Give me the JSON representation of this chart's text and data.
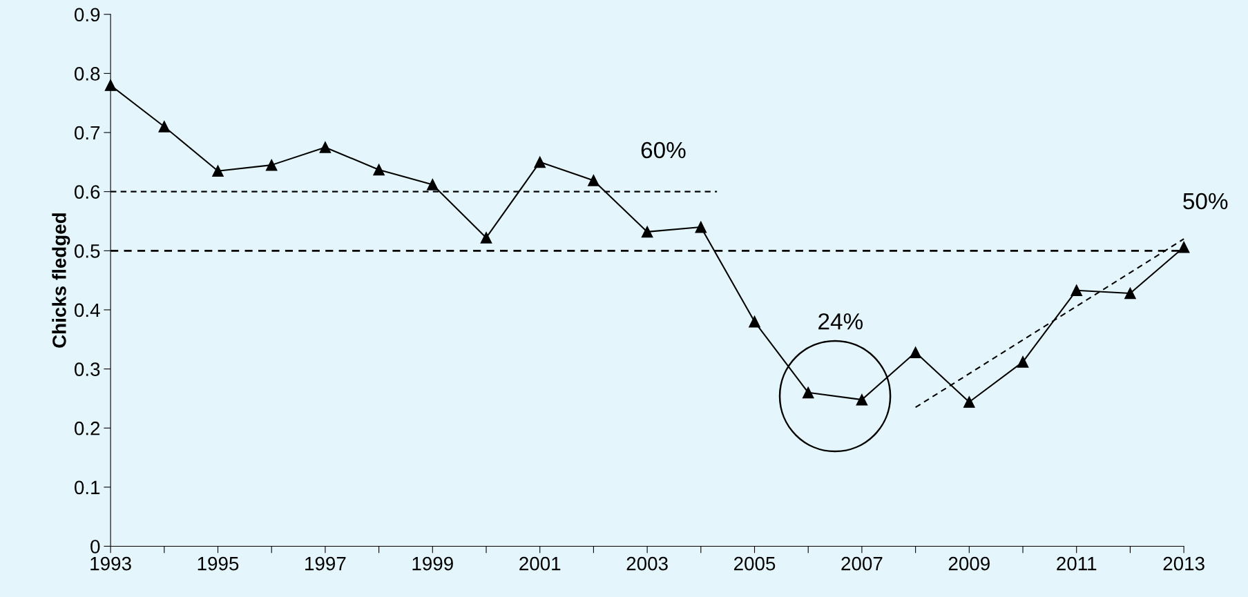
{
  "chart_data": {
    "type": "line",
    "ylabel": "Chicks fledged",
    "x": [
      1993,
      1994,
      1995,
      1996,
      1997,
      1998,
      1999,
      2000,
      2001,
      2002,
      2003,
      2004,
      2005,
      2006,
      2007,
      2008,
      2009,
      2010,
      2011,
      2012,
      2013
    ],
    "series": [
      {
        "color": "#000000",
        "values": [
          0.78,
          0.71,
          0.635,
          0.645,
          0.675,
          0.637,
          0.612,
          0.522,
          0.65,
          0.619,
          0.532,
          0.54,
          0.38,
          0.26,
          0.248,
          0.328,
          0.244,
          0.312,
          0.433,
          0.428,
          0.506
        ],
        "marker": "triangle",
        "line_style": "solid"
      },
      {
        "color": "#000000",
        "x": [
          1993,
          2004.3
        ],
        "values": [
          0.6,
          0.6
        ],
        "marker": "none",
        "line_style": "dashed"
      },
      {
        "color": "#000000",
        "x": [
          2008,
          2013
        ],
        "values": [
          0.235,
          0.52
        ],
        "marker": "none",
        "line_style": "dashed"
      }
    ],
    "ref_lines": [
      {
        "axis": "y",
        "value": 0.5,
        "color": "#000000",
        "line_style": "dashed"
      }
    ],
    "annotations": [
      "60%",
      "24%",
      "50%"
    ],
    "xlim": [
      1993,
      2013
    ],
    "xticks": [
      1993,
      {
        "value": 1994,
        "label": null
      },
      1995,
      {
        "value": 1996,
        "label": null
      },
      1997,
      {
        "value": 1998,
        "label": null
      },
      1999,
      {
        "value": 2000,
        "label": null
      },
      2001,
      {
        "value": 2002,
        "label": null
      },
      2003,
      {
        "value": 2004,
        "label": null
      },
      2005,
      {
        "value": 2006,
        "label": null
      },
      2007,
      {
        "value": 2008,
        "label": null
      },
      2009,
      {
        "value": 2010,
        "label": null
      },
      2011,
      {
        "value": 2012,
        "label": null
      },
      2013
    ],
    "ylim": [
      0,
      0.9
    ],
    "yticks": [
      0,
      0.1,
      0.2,
      0.3,
      0.4,
      0.5,
      0.6,
      0.7,
      0.8,
      0.9
    ],
    "grid": false,
    "legend": false
  }
}
